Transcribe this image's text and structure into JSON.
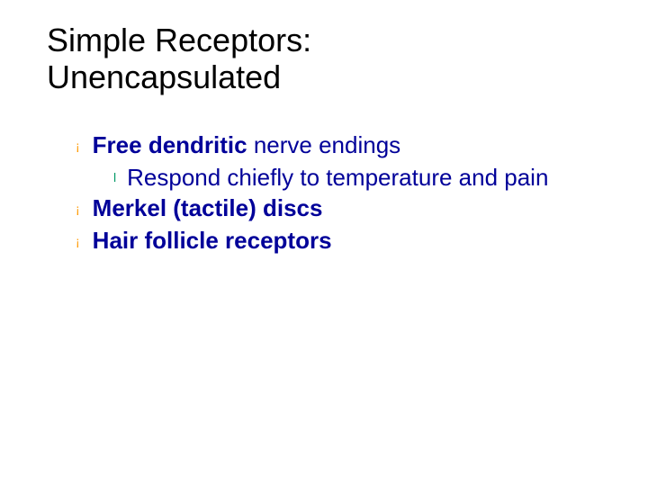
{
  "title_line1": "Simple Receptors:",
  "title_line2": "Unencapsulated",
  "colors": {
    "title": "#000000",
    "body_text": "#000099",
    "bullet_circle": "#ff9900",
    "bullet_disc": "#009966",
    "background": "#ffffff"
  },
  "typography": {
    "title_fontsize": 36,
    "body_fontsize": 26,
    "title_family": "Arial",
    "body_family": "Verdana"
  },
  "items": [
    {
      "bullet": "¡",
      "bold_part": "Free dendritic ",
      "rest": "nerve endings",
      "sub": [
        {
          "bullet": "l",
          "text": "Respond chiefly to temperature and pain"
        }
      ]
    },
    {
      "bullet": "¡",
      "bold_part": "Merkel (tactile) discs",
      "rest": "",
      "sub": []
    },
    {
      "bullet": "¡",
      "bold_part": "Hair follicle receptors",
      "rest": "",
      "sub": []
    }
  ]
}
